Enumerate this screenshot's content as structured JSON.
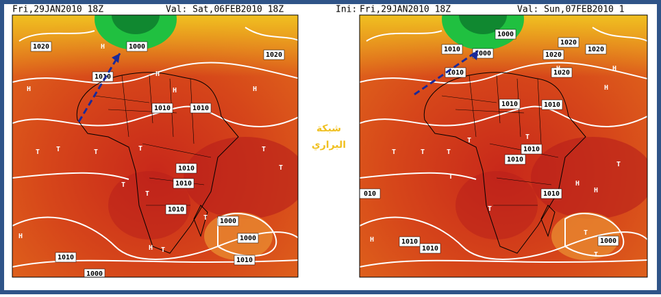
{
  "left_map": {
    "init": "Fri,29JAN2010 18Z",
    "valid": "Val: Sat,06FEB2010 18Z",
    "labels": [
      "1020",
      "1000",
      "1010",
      "1020",
      "1010",
      "1010",
      "1010",
      "1010",
      "1010",
      "1000",
      "1000",
      "1010",
      "1010",
      "1000",
      "H",
      "H",
      "H",
      "H",
      "H",
      "H",
      "H",
      "T",
      "T",
      "T",
      "T",
      "T",
      "T",
      "T",
      "T",
      "T",
      "T"
    ]
  },
  "right_map": {
    "prefix": "Ini:",
    "init": "Fri,29JAN2010 18Z",
    "valid": "Val: Sun,07FEB2010 1",
    "labels": [
      "1000",
      "1010",
      "1000",
      "1020",
      "1020",
      "1020",
      "1020",
      "1010",
      "1010",
      "1010",
      "1010",
      "1010",
      "1010",
      "1010",
      "1010",
      "1000",
      "010",
      "H",
      "H",
      "H",
      "H",
      "H",
      "H",
      "T",
      "T",
      "T",
      "T",
      "T",
      "T",
      "T",
      "T",
      "T",
      "T"
    ]
  },
  "watermark": {
    "line1": "شبكة",
    "line2": "البراري"
  }
}
